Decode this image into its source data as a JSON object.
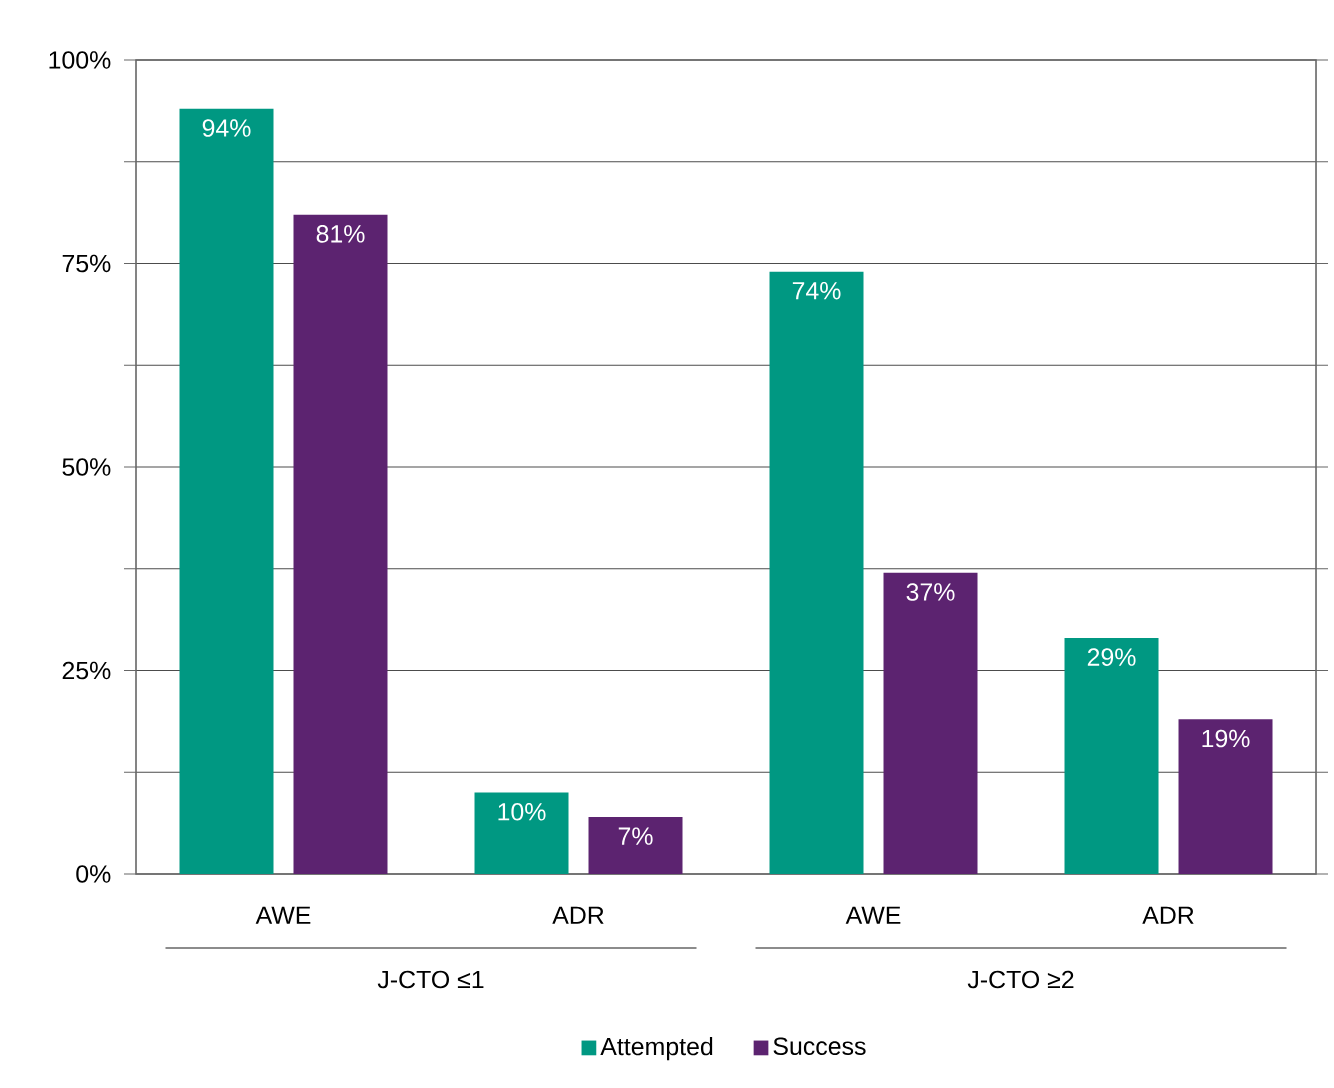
{
  "chart_data": {
    "type": "bar",
    "categories": [
      "AWE",
      "ADR",
      "AWE",
      "ADR"
    ],
    "series": [
      {
        "name": "Attempted",
        "color": "#009882",
        "values": [
          94,
          10,
          74,
          29
        ],
        "value_labels": [
          "94%",
          "10%",
          "74%",
          "29%"
        ]
      },
      {
        "name": "Success",
        "color": "#5c2370",
        "values": [
          81,
          7,
          37,
          19
        ],
        "value_labels": [
          "81%",
          "7%",
          "37%",
          "19%"
        ]
      }
    ],
    "annotations": [
      "J-CTO ≤1",
      "J-CTO ≥2"
    ],
    "ylim": [
      0,
      100
    ],
    "yticks": [
      {
        "value": 0,
        "label": "0%"
      },
      {
        "value": 12.5,
        "label": null
      },
      {
        "value": 25,
        "label": "25%"
      },
      {
        "value": 37.5,
        "label": null
      },
      {
        "value": 50,
        "label": "50%"
      },
      {
        "value": 62.5,
        "label": null
      },
      {
        "value": 75,
        "label": "75%"
      },
      {
        "value": 87.5,
        "label": null
      },
      {
        "value": 100,
        "label": "100%"
      }
    ],
    "grid": "y",
    "legend": "bottom"
  }
}
